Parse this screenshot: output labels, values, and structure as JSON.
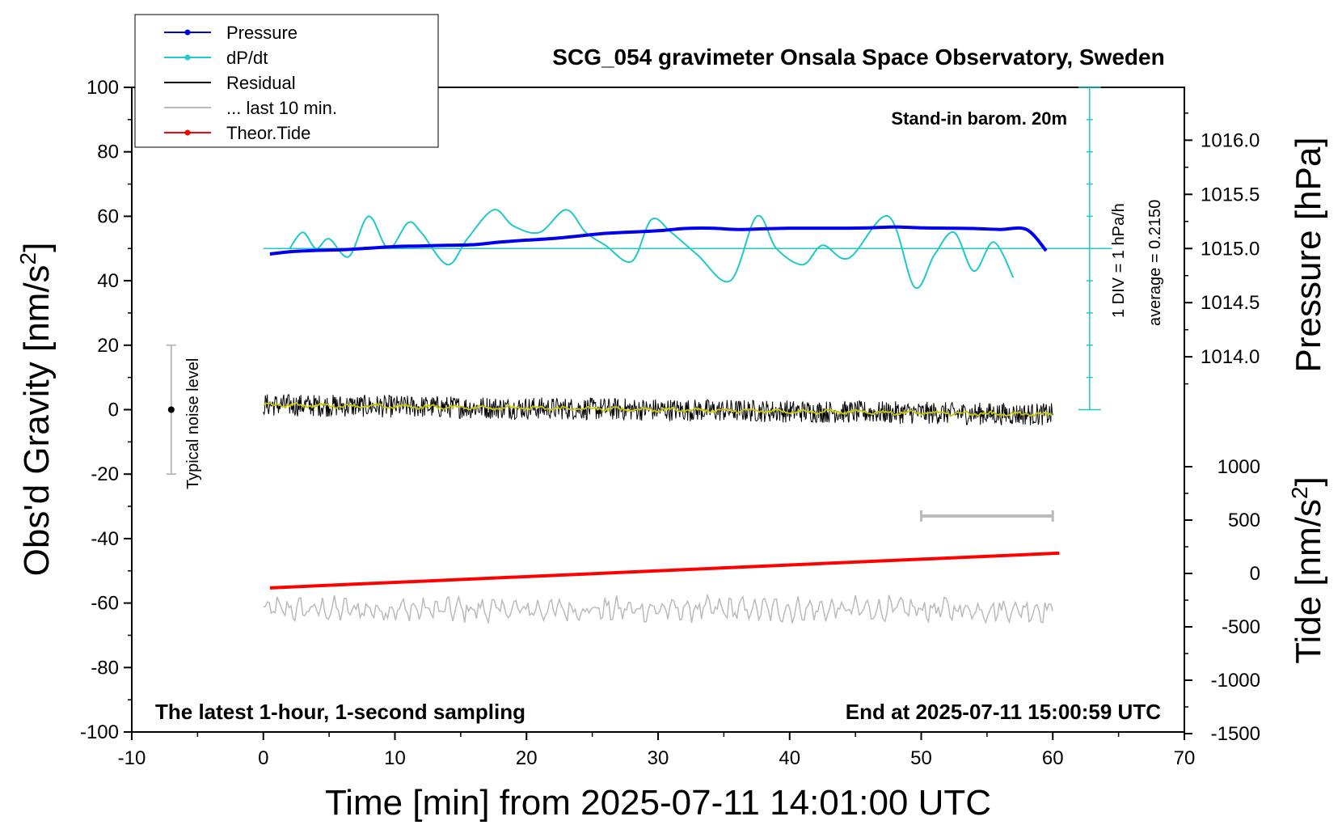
{
  "chart_data": {
    "type": "line",
    "title": "SCG_054 gravimeter Onsala Space Observatory, Sweden",
    "xlabel": "Time [min] from 2025-07-11 14:01:00 UTC",
    "ylabel": "Obs'd Gravity [nm/s",
    "ylabel_sup": "2",
    "ylabel_close": "]",
    "right_top_label": "Pressure [hPa]",
    "right_bottom_label": "Tide [nm/s",
    "right_bottom_label_sup": "2",
    "right_bottom_label_close": "]",
    "xlim": [
      -10,
      70
    ],
    "ylim": [
      -100,
      100
    ],
    "x_ticks": [
      "-10",
      "0",
      "10",
      "20",
      "30",
      "40",
      "50",
      "60",
      "70"
    ],
    "y_ticks": [
      "100",
      "80",
      "60",
      "40",
      "20",
      "0",
      "-20",
      "-40",
      "-60",
      "-80",
      "-100"
    ],
    "pressure_ticks": [
      "1016.0",
      "1015.5",
      "1015.0",
      "1014.5",
      "1014.0"
    ],
    "pressure_range_hpa": [
      1013.5,
      1016.5
    ],
    "tide_ticks": [
      "1000",
      "500",
      "0",
      "-500",
      "-1000",
      "-1500"
    ],
    "tide_range": [
      -1500,
      1500
    ],
    "legend": [
      {
        "label": "Pressure",
        "color": "#0000ee",
        "marker": true
      },
      {
        "label": "dP/dt",
        "color": "#20c8c8",
        "marker": true
      },
      {
        "label": "Residual",
        "color": "#000000",
        "marker": false
      },
      {
        "label": "... last 10 min.",
        "color": "#bbbbbb",
        "marker": false
      },
      {
        "label": "Theor.Tide",
        "color": "#ff0000",
        "marker": true
      }
    ],
    "annotations": {
      "barometer": "Stand-in barom. 20m",
      "bottom_left": "The latest 1-hour, 1-second sampling",
      "bottom_right": "End at 2025-07-11 15:00:59 UTC",
      "div_label": "1 DIV = 1 hPa/h",
      "average_label": "average = 0.2150",
      "noise_label": "Typical noise level"
    },
    "noise_bar": {
      "x": -7,
      "center": 0,
      "range": [
        -20,
        20
      ]
    },
    "last10_bar": {
      "x_range": [
        50,
        60
      ],
      "y": -33
    },
    "series": [
      {
        "name": "Pressure",
        "color": "#0000ee",
        "x": [
          0.5,
          2,
          4,
          6,
          8,
          10,
          12,
          14,
          16,
          18,
          20,
          22,
          24,
          26,
          28,
          30,
          32,
          34,
          36,
          38,
          40,
          42,
          44,
          46,
          48,
          50,
          52,
          54,
          56,
          58,
          59.5
        ],
        "y": [
          48.3,
          49.0,
          49.4,
          49.6,
          50.1,
          50.6,
          50.8,
          51.0,
          51.2,
          52.0,
          52.6,
          53.1,
          53.9,
          54.7,
          55.1,
          55.5,
          56.2,
          56.3,
          55.9,
          56.1,
          56.3,
          56.3,
          56.3,
          56.4,
          56.7,
          56.4,
          56.3,
          56.2,
          55.9,
          55.9,
          49.3
        ]
      },
      {
        "name": "dP/dt",
        "color": "#20c8c8",
        "x": [
          2.0,
          3.0,
          4.0,
          5.0,
          6.5,
          8.0,
          9.5,
          11.0,
          12.0,
          14.0,
          15.5,
          17.5,
          19.0,
          21.0,
          23.0,
          24.5,
          26.0,
          28.0,
          29.5,
          31.0,
          33.0,
          35.5,
          37.5,
          39.0,
          41.0,
          42.5,
          44.5,
          47.5,
          49.5,
          51.0,
          52.5,
          54.0,
          55.5,
          57.0
        ],
        "y": [
          50.0,
          55.0,
          50.0,
          53.0,
          47.5,
          60.0,
          50.0,
          58.0,
          55.0,
          45.0,
          53.0,
          62.0,
          57.0,
          55.0,
          62.0,
          55.0,
          51.0,
          46.0,
          59.0,
          55.0,
          48.0,
          40.0,
          60.0,
          50.0,
          45.0,
          51.0,
          47.0,
          60.0,
          38.0,
          48.0,
          55.0,
          43.0,
          52.0,
          41.0
        ]
      },
      {
        "name": "Residual",
        "color": "#000000",
        "x_range": [
          0,
          60
        ],
        "center_start": 1.5,
        "center_end": -1.5,
        "amplitude": 3.5
      },
      {
        "name": "Residual smoothed",
        "color": "#c8c800",
        "x_range": [
          0,
          60
        ],
        "center_start": 1.5,
        "center_end": -1.5
      },
      {
        "name": "Theor.Tide",
        "color": "#ff0000",
        "x": [
          0.5,
          60.5
        ],
        "y": [
          -55.3,
          -44.5
        ]
      },
      {
        "name": "... last 10 min.",
        "color": "#bbbbbb",
        "x_range": [
          0,
          60
        ],
        "center": -62,
        "amplitude": 3.5
      }
    ],
    "pressure_reference_line": {
      "y": 50
    },
    "div_scale": {
      "x": 62.8,
      "y_top": 100,
      "y_bottom": 0,
      "step": 10
    }
  }
}
